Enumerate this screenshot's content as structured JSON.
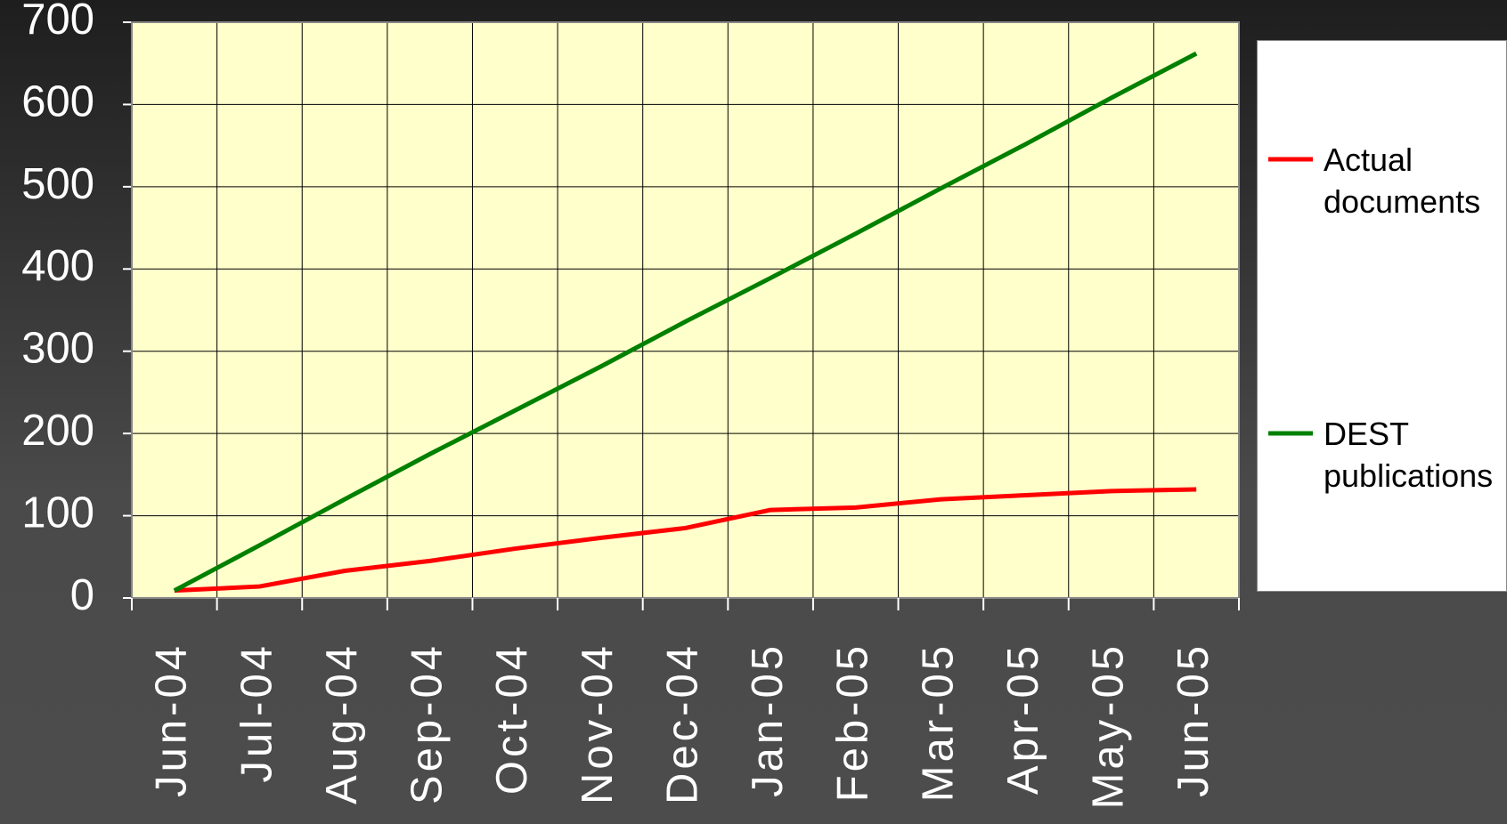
{
  "chart_data": {
    "type": "line",
    "categories": [
      "Jun-04",
      "Jul-04",
      "Aug-04",
      "Sep-04",
      "Oct-04",
      "Nov-04",
      "Dec-04",
      "Jan-05",
      "Feb-05",
      "Mar-05",
      "Apr-05",
      "May-05",
      "Jun-05"
    ],
    "series": [
      {
        "name": "Actual documents",
        "color": "#ff0000",
        "values": [
          9,
          14,
          33,
          45,
          60,
          73,
          85,
          107,
          110,
          120,
          125,
          130,
          132
        ]
      },
      {
        "name": "DEST publications",
        "color": "#008000",
        "values": [
          9,
          64,
          120,
          175,
          228,
          281,
          336,
          389,
          443,
          498,
          552,
          608,
          662
        ]
      }
    ],
    "ylim": [
      0,
      700
    ],
    "yticks": [
      0,
      100,
      200,
      300,
      400,
      500,
      600,
      700
    ],
    "grid": true,
    "legend": "right"
  }
}
